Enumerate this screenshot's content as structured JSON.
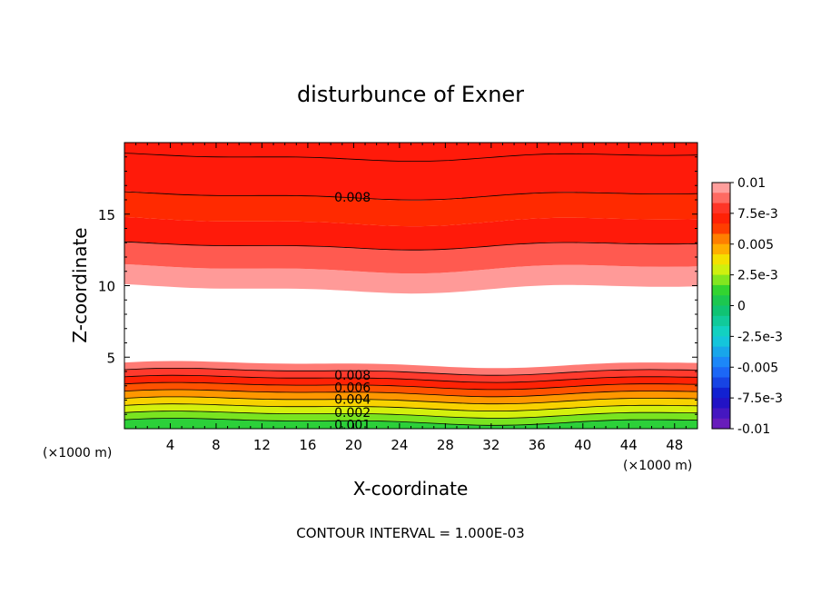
{
  "chart_data": {
    "type": "heatmap",
    "title": "disturbunce of Exner",
    "xlabel": "X-coordinate",
    "ylabel": "Z-coordinate",
    "x_unit": "(×1000 m)",
    "y_unit": "(×1000 m)",
    "xlim": [
      0,
      50
    ],
    "ylim": [
      0,
      20
    ],
    "x_ticks": [
      "4",
      "8",
      "12",
      "16",
      "20",
      "24",
      "28",
      "32",
      "36",
      "40",
      "44",
      "48"
    ],
    "y_ticks": [
      "5",
      "10",
      "15"
    ],
    "footer": "CONTOUR INTERVAL = 1.000E-03",
    "colorbar": {
      "min": -0.01,
      "max": 0.01,
      "labels": [
        "0.01",
        "7.5e-3",
        "0.005",
        "2.5e-3",
        "0",
        "-2.5e-3",
        "-0.005",
        "-7.5e-3",
        "-0.01"
      ]
    },
    "contour_labels": [
      {
        "text": "0.008",
        "x": 18,
        "z": 16.2
      },
      {
        "text": "0.008",
        "x": 18,
        "z": 3.75
      },
      {
        "text": "0.006",
        "x": 18,
        "z": 2.9
      },
      {
        "text": "0.004",
        "x": 18,
        "z": 2.05
      },
      {
        "text": "0.002",
        "x": 18,
        "z": 1.15
      },
      {
        "text": "0.001",
        "x": 18,
        "z": 0.3
      }
    ],
    "upper_region": {
      "z_start": 9.8,
      "z_end": 20,
      "levels": [
        {
          "z": 11.2,
          "value": 0.0095
        },
        {
          "z": 12.8,
          "value": 0.0085
        },
        {
          "z": 14.5,
          "value": 0.0075
        },
        {
          "z": 16.3,
          "value": 0.0065
        },
        {
          "z": 19.0,
          "value": 0.0075
        }
      ]
    },
    "lower_region": {
      "z_start": 0,
      "z_end": 4.5,
      "levels": [
        0.001,
        0.002,
        0.003,
        0.004,
        0.005,
        0.006,
        0.007,
        0.008,
        0.009
      ]
    }
  }
}
